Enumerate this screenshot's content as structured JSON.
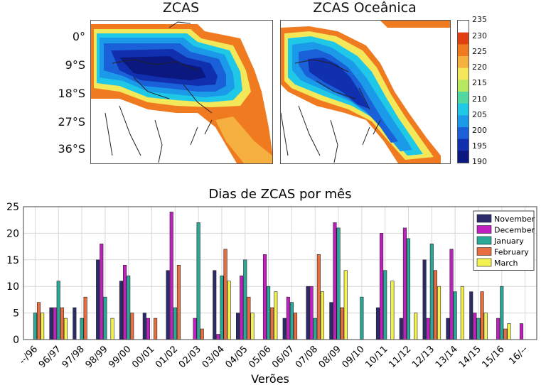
{
  "maps": {
    "left_title": "ZCAS",
    "right_title": "ZCAS Oceânica",
    "lat_labels": [
      "0°",
      "9°S",
      "18°S",
      "27°S",
      "36°S"
    ]
  },
  "colorbar": {
    "ticks": [
      "235",
      "230",
      "225",
      "220",
      "215",
      "210",
      "205",
      "200",
      "195",
      "190"
    ],
    "colors": [
      "#ffffff",
      "#e04010",
      "#f07a20",
      "#f5b040",
      "#f3e85a",
      "#b8e860",
      "#50d8a0",
      "#20c8e8",
      "#1a9ae8",
      "#1a60d8",
      "#1030b0",
      "#0a1880"
    ]
  },
  "chart_data": {
    "type": "bar",
    "title": "Dias de ZCAS por mês",
    "xlabel": "Verões",
    "ylabel": "",
    "ylim": [
      0,
      25
    ],
    "yticks": [
      0,
      5,
      10,
      15,
      20,
      25
    ],
    "categories": [
      "--/96",
      "96/97",
      "97/98",
      "98/99",
      "99/00",
      "00/01",
      "01/02",
      "02/03",
      "03/04",
      "04/05",
      "05/06",
      "06/07",
      "07/08",
      "08/09",
      "09/10",
      "10/11",
      "11/12",
      "12/13",
      "13/14",
      "14/15",
      "15/16",
      "16/--"
    ],
    "legend_position": "top-right",
    "grid": true,
    "series": [
      {
        "name": "November",
        "color": "#2b2a6b",
        "values": [
          0,
          6,
          6,
          15,
          11,
          5,
          13,
          0,
          13,
          5,
          0,
          4,
          10,
          7,
          0,
          6,
          4,
          15,
          4,
          9,
          0,
          0
        ]
      },
      {
        "name": "December",
        "color": "#c020c0",
        "values": [
          0,
          6,
          0,
          18,
          14,
          4,
          24,
          4,
          1,
          12,
          16,
          8,
          10,
          22,
          0,
          20,
          21,
          4,
          17,
          5,
          4,
          3
        ]
      },
      {
        "name": "January",
        "color": "#2aa898",
        "values": [
          5,
          11,
          4,
          8,
          12,
          0,
          6,
          22,
          12,
          15,
          10,
          7,
          4,
          21,
          8,
          13,
          19,
          18,
          9,
          4,
          10,
          0
        ]
      },
      {
        "name": "February",
        "color": "#e86d40",
        "values": [
          7,
          6,
          8,
          0,
          5,
          4,
          14,
          2,
          17,
          8,
          6,
          5,
          16,
          6,
          0,
          0,
          0,
          13,
          0,
          9,
          2,
          0
        ]
      },
      {
        "name": "March",
        "color": "#f4f250",
        "values": [
          5,
          4,
          0,
          4,
          0,
          0,
          0,
          0,
          11,
          5,
          9,
          0,
          9,
          13,
          0,
          11,
          5,
          10,
          10,
          5,
          3,
          0
        ]
      }
    ]
  }
}
